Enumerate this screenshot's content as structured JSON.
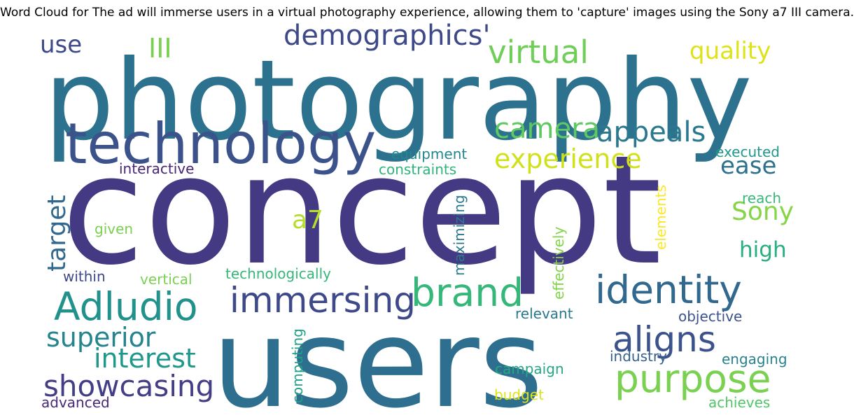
{
  "chart_data": {
    "type": "wordcloud",
    "title": "Word Cloud for The ad will immerse users in a virtual photography experience, allowing them to 'capture' images using the Sony a7 III camera.",
    "background": "#ffffff",
    "colormap": "viridis",
    "words": [
      {
        "text": "concept",
        "weight": 1.0,
        "orientation": "horizontal",
        "color": "#443a83"
      },
      {
        "text": "photography",
        "weight": 0.83,
        "orientation": "horizontal",
        "color": "#2c728e"
      },
      {
        "text": "users",
        "weight": 0.76,
        "orientation": "horizontal",
        "color": "#2e6e8e"
      },
      {
        "text": "technology",
        "weight": 0.45,
        "orientation": "horizontal",
        "color": "#3b528b"
      },
      {
        "text": "identity",
        "weight": 0.3,
        "orientation": "horizontal",
        "color": "#31688e"
      },
      {
        "text": "Adludio",
        "weight": 0.3,
        "orientation": "horizontal",
        "color": "#21918c"
      },
      {
        "text": "brand",
        "weight": 0.3,
        "orientation": "horizontal",
        "color": "#35b779"
      },
      {
        "text": "purpose",
        "weight": 0.3,
        "orientation": "horizontal",
        "color": "#7ad151"
      },
      {
        "text": "immersing",
        "weight": 0.28,
        "orientation": "horizontal",
        "color": "#3e4989"
      },
      {
        "text": "aligns",
        "weight": 0.28,
        "orientation": "horizontal",
        "color": "#3b528b"
      },
      {
        "text": "virtual",
        "weight": 0.25,
        "orientation": "horizontal",
        "color": "#6ece58"
      },
      {
        "text": "showcasing",
        "weight": 0.23,
        "orientation": "horizontal",
        "color": "#433e85"
      },
      {
        "text": "demographics'",
        "weight": 0.22,
        "orientation": "horizontal",
        "color": "#3e4989"
      },
      {
        "text": "appeals",
        "weight": 0.22,
        "orientation": "horizontal",
        "color": "#2a788e"
      },
      {
        "text": "camera",
        "weight": 0.22,
        "orientation": "horizontal",
        "color": "#5ec962"
      },
      {
        "text": "experience",
        "weight": 0.21,
        "orientation": "horizontal",
        "color": "#d0e11c"
      },
      {
        "text": "superior",
        "weight": 0.21,
        "orientation": "horizontal",
        "color": "#25848e"
      },
      {
        "text": "interest",
        "weight": 0.21,
        "orientation": "horizontal",
        "color": "#1f988b"
      },
      {
        "text": "III",
        "weight": 0.21,
        "orientation": "horizontal",
        "color": "#7ad151"
      },
      {
        "text": "target",
        "weight": 0.2,
        "orientation": "vertical",
        "color": "#31688e"
      },
      {
        "text": "Sony",
        "weight": 0.2,
        "orientation": "horizontal",
        "color": "#86d549"
      },
      {
        "text": "a7",
        "weight": 0.2,
        "orientation": "horizontal",
        "color": "#b5de2b"
      },
      {
        "text": "use",
        "weight": 0.19,
        "orientation": "horizontal",
        "color": "#3e4989"
      },
      {
        "text": "quality",
        "weight": 0.19,
        "orientation": "horizontal",
        "color": "#dde318"
      },
      {
        "text": "ease",
        "weight": 0.19,
        "orientation": "horizontal",
        "color": "#2c728e"
      },
      {
        "text": "high",
        "weight": 0.17,
        "orientation": "horizontal",
        "color": "#29af7f"
      },
      {
        "text": "equipment",
        "weight": 0.1,
        "orientation": "horizontal",
        "color": "#24868e"
      },
      {
        "text": "constraints",
        "weight": 0.1,
        "orientation": "horizontal",
        "color": "#2fb47c"
      },
      {
        "text": "interactive",
        "weight": 0.1,
        "orientation": "horizontal",
        "color": "#482677"
      },
      {
        "text": "executed",
        "weight": 0.1,
        "orientation": "horizontal",
        "color": "#1f988b"
      },
      {
        "text": "reach",
        "weight": 0.1,
        "orientation": "horizontal",
        "color": "#37b878"
      },
      {
        "text": "given",
        "weight": 0.1,
        "orientation": "horizontal",
        "color": "#7ad151"
      },
      {
        "text": "maximizing",
        "weight": 0.1,
        "orientation": "vertical",
        "color": "#2a788e"
      },
      {
        "text": "effectively",
        "weight": 0.1,
        "orientation": "vertical",
        "color": "#84d44b"
      },
      {
        "text": "elements",
        "weight": 0.1,
        "orientation": "vertical",
        "color": "#fde725"
      },
      {
        "text": "within",
        "weight": 0.1,
        "orientation": "horizontal",
        "color": "#3e4989"
      },
      {
        "text": "vertical",
        "weight": 0.1,
        "orientation": "horizontal",
        "color": "#7ad151"
      },
      {
        "text": "technologically",
        "weight": 0.1,
        "orientation": "horizontal",
        "color": "#35b779"
      },
      {
        "text": "relevant",
        "weight": 0.1,
        "orientation": "horizontal",
        "color": "#2a788e"
      },
      {
        "text": "objective",
        "weight": 0.1,
        "orientation": "horizontal",
        "color": "#3b528b"
      },
      {
        "text": "industry",
        "weight": 0.1,
        "orientation": "horizontal",
        "color": "#355f8d"
      },
      {
        "text": "engaging",
        "weight": 0.1,
        "orientation": "horizontal",
        "color": "#26828e"
      },
      {
        "text": "campaign",
        "weight": 0.1,
        "orientation": "horizontal",
        "color": "#26a784"
      },
      {
        "text": "computing",
        "weight": 0.1,
        "orientation": "vertical",
        "color": "#1fa188"
      },
      {
        "text": "budget",
        "weight": 0.1,
        "orientation": "horizontal",
        "color": "#dde318"
      },
      {
        "text": "achieves",
        "weight": 0.1,
        "orientation": "horizontal",
        "color": "#52c569"
      },
      {
        "text": "advanced",
        "weight": 0.1,
        "orientation": "horizontal",
        "color": "#482878"
      }
    ]
  }
}
